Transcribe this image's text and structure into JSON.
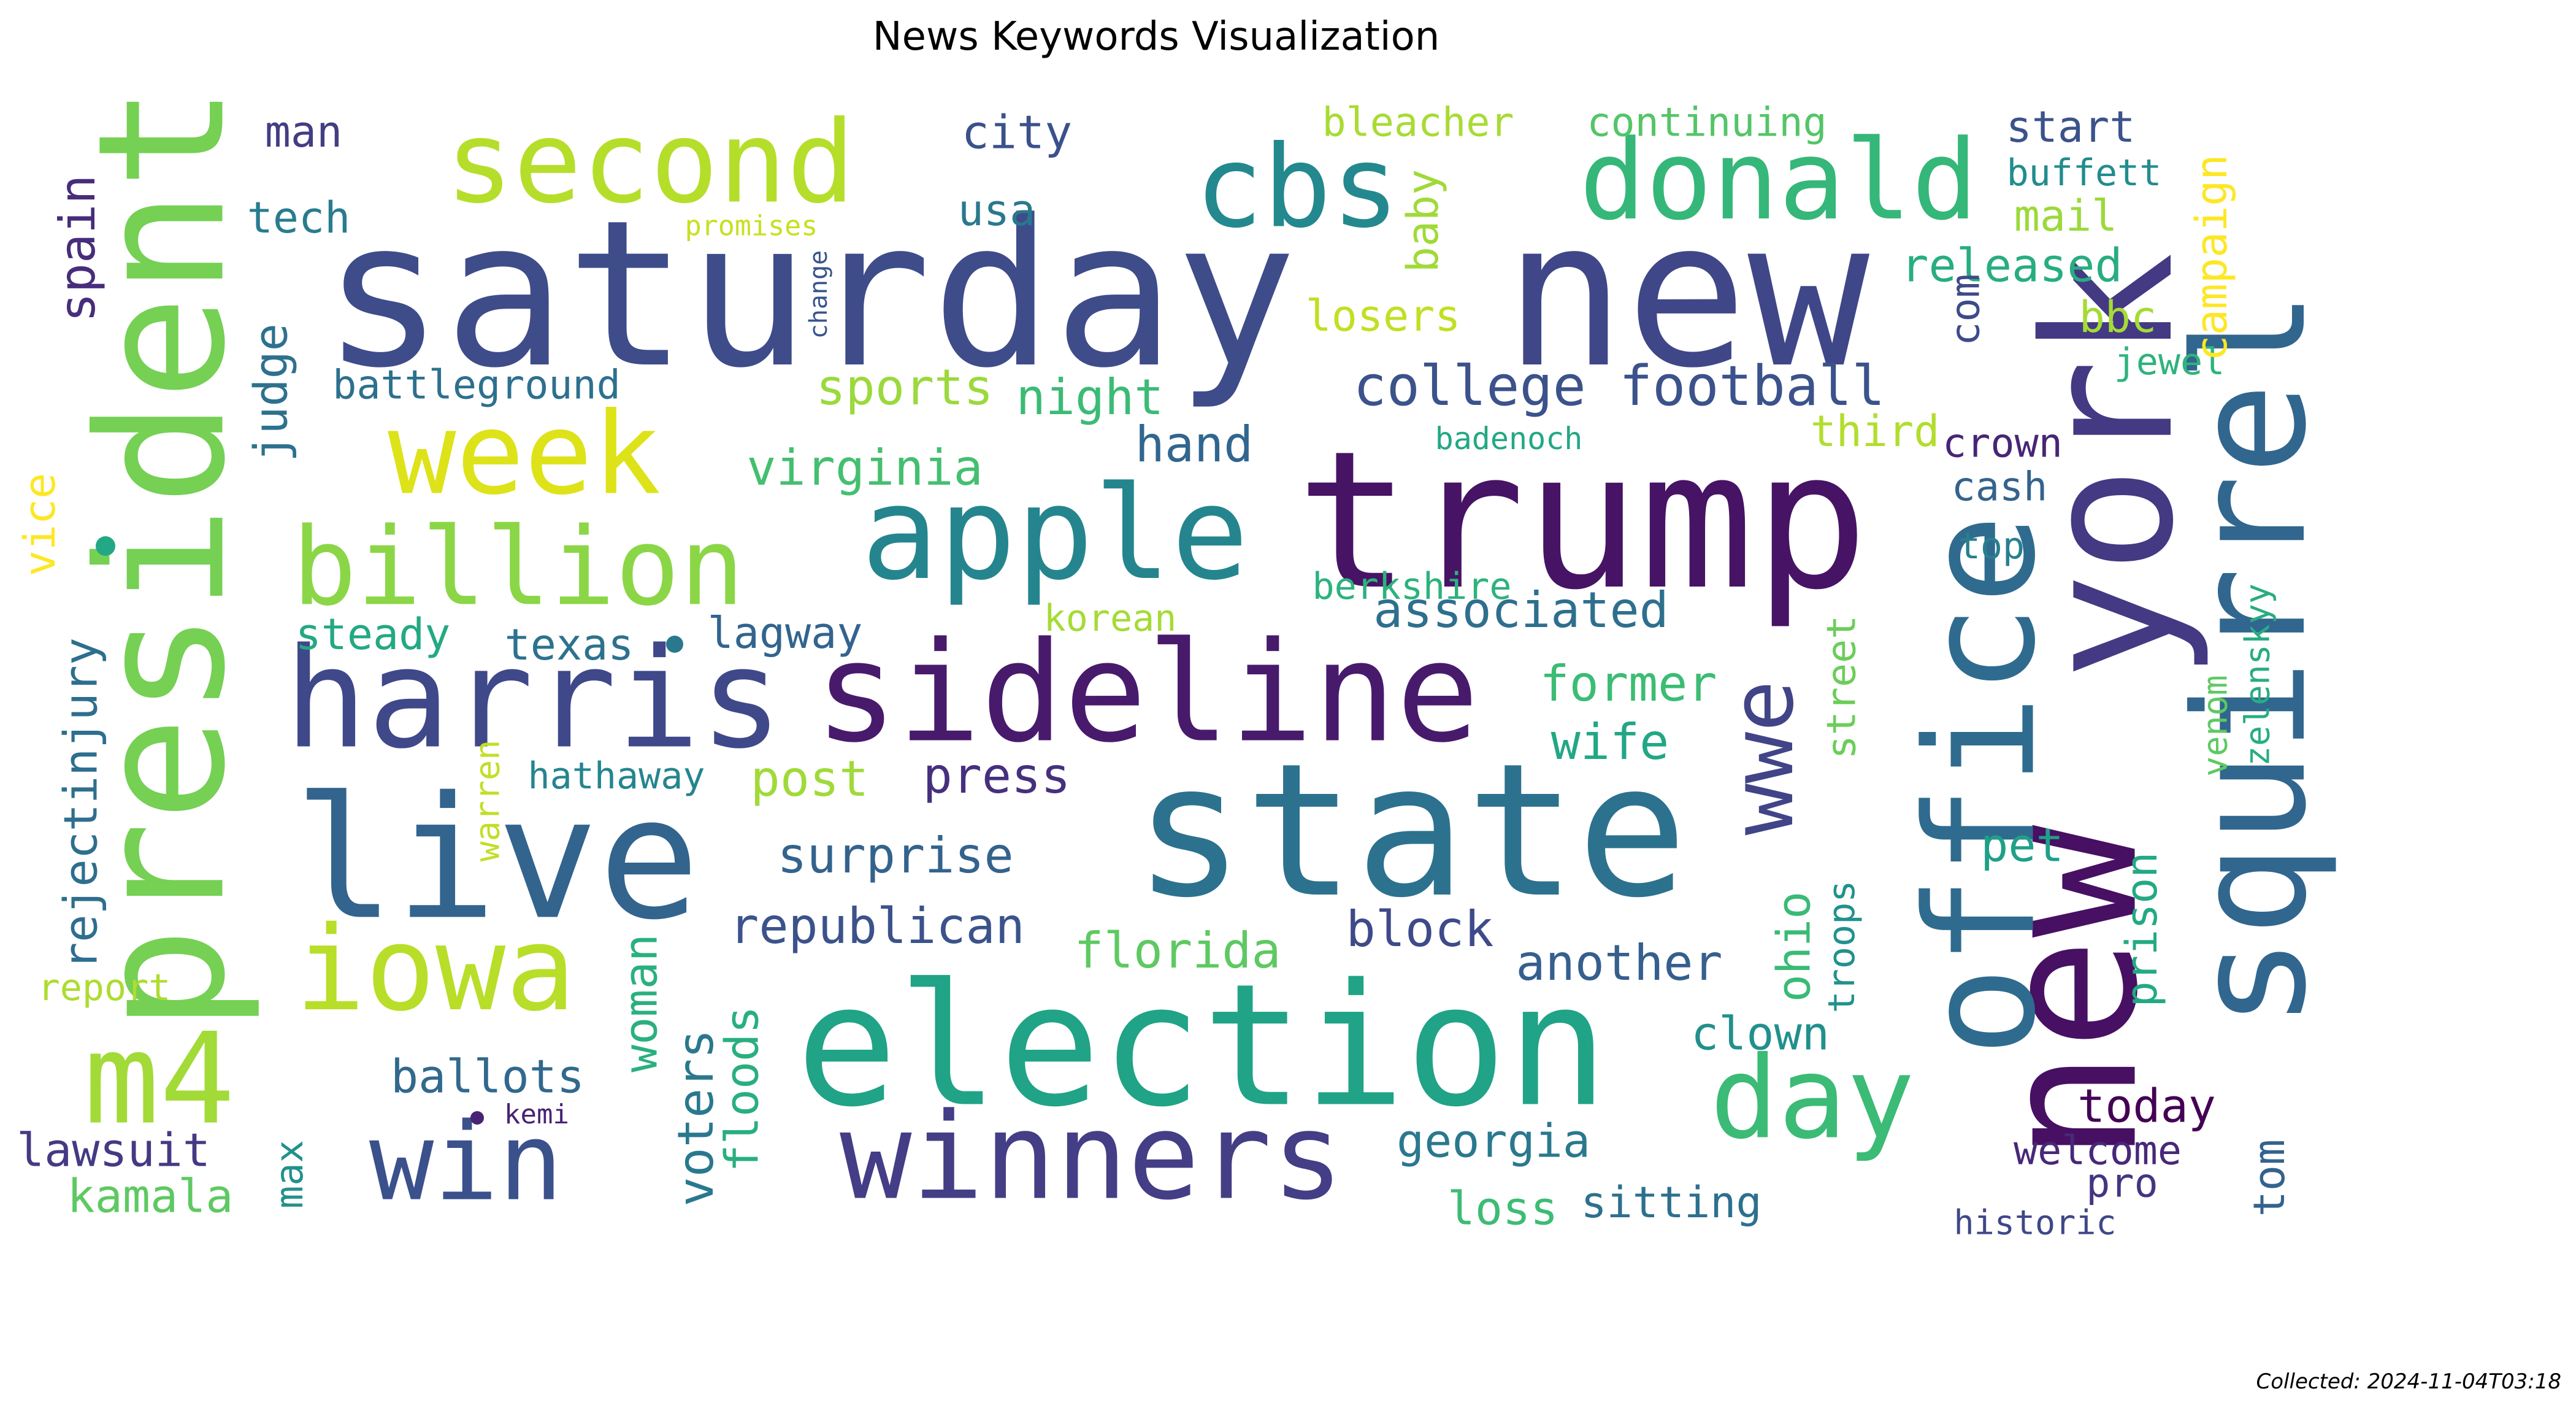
{
  "title": "News Keywords Visualization",
  "footer": "Collected: 2024-11-04T03:18",
  "words": [
    {
      "text": "saturday",
      "color": "#3e4c8a",
      "vertical": false
    },
    {
      "text": "new",
      "color": "#3f4788",
      "vertical": false
    },
    {
      "text": "trump",
      "color": "#471365",
      "vertical": false
    },
    {
      "text": "state",
      "color": "#2c728e",
      "vertical": false
    },
    {
      "text": "election",
      "color": "#20a386",
      "vertical": false
    },
    {
      "text": "live",
      "color": "#32648e",
      "vertical": false
    },
    {
      "text": "harris",
      "color": "#3f4889",
      "vertical": false
    },
    {
      "text": "sideline",
      "color": "#481a6c",
      "vertical": false
    },
    {
      "text": "apple",
      "color": "#25858e",
      "vertical": false
    },
    {
      "text": "president",
      "color": "#75d054",
      "vertical": true
    },
    {
      "text": "new",
      "color": "#471063",
      "vertical": true
    },
    {
      "text": "york",
      "color": "#443983",
      "vertical": true
    },
    {
      "text": "office",
      "color": "#2f6b8e",
      "vertical": true
    },
    {
      "text": "squirrel",
      "color": "#31668e",
      "vertical": true
    },
    {
      "text": "second",
      "color": "#b5de2b",
      "vertical": false
    },
    {
      "text": "cbs",
      "color": "#23898e",
      "vertical": false
    },
    {
      "text": "donald",
      "color": "#35b779",
      "vertical": false
    },
    {
      "text": "week",
      "color": "#dde318",
      "vertical": false
    },
    {
      "text": "billion",
      "color": "#8bd646",
      "vertical": false
    },
    {
      "text": "winners",
      "color": "#433e85",
      "vertical": false
    },
    {
      "text": "day",
      "color": "#3bbb75",
      "vertical": false
    },
    {
      "text": "win",
      "color": "#3b518b",
      "vertical": false
    },
    {
      "text": "m4",
      "color": "#a2da37",
      "vertical": false
    },
    {
      "text": "iowa",
      "color": "#b8de29",
      "vertical": false
    },
    {
      "text": "wwe",
      "color": "#414487",
      "vertical": true
    },
    {
      "text": "college football",
      "color": "#3b528b",
      "vertical": false
    },
    {
      "text": "associated",
      "color": "#2e6f8e",
      "vertical": false
    },
    {
      "text": "former",
      "color": "#3cbc74",
      "vertical": false
    },
    {
      "text": "wife",
      "color": "#22a785",
      "vertical": false
    },
    {
      "text": "surprise",
      "color": "#33638d",
      "vertical": false
    },
    {
      "text": "republican",
      "color": "#3b528b",
      "vertical": false
    },
    {
      "text": "florida",
      "color": "#5ec962",
      "vertical": false
    },
    {
      "text": "block",
      "color": "#3e4a89",
      "vertical": false
    },
    {
      "text": "another",
      "color": "#355f8d",
      "vertical": false
    },
    {
      "text": "georgia",
      "color": "#2a788e",
      "vertical": false
    },
    {
      "text": "loss",
      "color": "#3dbc74",
      "vertical": false
    },
    {
      "text": "sitting",
      "color": "#2d708e",
      "vertical": false
    },
    {
      "text": "clown",
      "color": "#21908d",
      "vertical": false
    },
    {
      "text": "ballots",
      "color": "#31688e",
      "vertical": false
    },
    {
      "text": "lawsuit",
      "color": "#443a83",
      "vertical": false
    },
    {
      "text": "kamala",
      "color": "#5ec962",
      "vertical": false
    },
    {
      "text": "kemi",
      "color": "#482374",
      "vertical": false
    },
    {
      "text": "report",
      "color": "#addc30",
      "vertical": false
    },
    {
      "text": "voters",
      "color": "#2a788e",
      "vertical": true
    },
    {
      "text": "woman",
      "color": "#2ab07f",
      "vertical": true
    },
    {
      "text": "floods",
      "color": "#29af7f",
      "vertical": true
    },
    {
      "text": "max",
      "color": "#21918c",
      "vertical": true
    },
    {
      "text": "hathaway",
      "color": "#25858e",
      "vertical": false
    },
    {
      "text": "post",
      "color": "#a0da39",
      "vertical": false
    },
    {
      "text": "press",
      "color": "#46307e",
      "vertical": false
    },
    {
      "text": "steady",
      "color": "#23a983",
      "vertical": false
    },
    {
      "text": "texas",
      "color": "#2c728e",
      "vertical": false
    },
    {
      "text": "lagway",
      "color": "#32648e",
      "vertical": false
    },
    {
      "text": "korean",
      "color": "#a5db36",
      "vertical": false
    },
    {
      "text": "berkshire",
      "color": "#2db27d",
      "vertical": false
    },
    {
      "text": "virginia",
      "color": "#44bf70",
      "vertical": false
    },
    {
      "text": "hand",
      "color": "#31668e",
      "vertical": false
    },
    {
      "text": "sports",
      "color": "#9bd93c",
      "vertical": false
    },
    {
      "text": "night",
      "color": "#3bbb75",
      "vertical": false
    },
    {
      "text": "battleground",
      "color": "#2d708e",
      "vertical": false
    },
    {
      "text": "judge",
      "color": "#2d718e",
      "vertical": true
    },
    {
      "text": "tech",
      "color": "#287c8e",
      "vertical": false
    },
    {
      "text": "man",
      "color": "#433d84",
      "vertical": false
    },
    {
      "text": "city",
      "color": "#3b518b",
      "vertical": false
    },
    {
      "text": "usa",
      "color": "#2a788e",
      "vertical": false
    },
    {
      "text": "promises",
      "color": "#c8e020",
      "vertical": false
    },
    {
      "text": "change",
      "color": "#39558c",
      "vertical": true
    },
    {
      "text": "spain",
      "color": "#472d7b",
      "vertical": true
    },
    {
      "text": "vice",
      "color": "#fde725",
      "vertical": true
    },
    {
      "text": "rejectinjury",
      "color": "#2e6e8e",
      "vertical": true
    },
    {
      "text": "warren",
      "color": "#c0df25",
      "vertical": true
    },
    {
      "text": "bleacher",
      "color": "#a8db34",
      "vertical": false
    },
    {
      "text": "continuing",
      "color": "#54c568",
      "vertical": false
    },
    {
      "text": "baby",
      "color": "#a0da39",
      "vertical": true
    },
    {
      "text": "losers",
      "color": "#c2df23",
      "vertical": false
    },
    {
      "text": "released",
      "color": "#27ad81",
      "vertical": false
    },
    {
      "text": "third",
      "color": "#b2dd2d",
      "vertical": false
    },
    {
      "text": "badenoch",
      "color": "#22a884",
      "vertical": false
    },
    {
      "text": "crown",
      "color": "#482576",
      "vertical": false
    },
    {
      "text": "cash",
      "color": "#33638d",
      "vertical": false
    },
    {
      "text": "top",
      "color": "#277f8e",
      "vertical": false
    },
    {
      "text": "com",
      "color": "#3e4a89",
      "vertical": true
    },
    {
      "text": "street",
      "color": "#6ccd5a",
      "vertical": true
    },
    {
      "text": "troops",
      "color": "#21918c",
      "vertical": true
    },
    {
      "text": "ohio",
      "color": "#3aba76",
      "vertical": true
    },
    {
      "text": "start",
      "color": "#3b528b",
      "vertical": false
    },
    {
      "text": "buffett",
      "color": "#228c8d",
      "vertical": false
    },
    {
      "text": "mail",
      "color": "#9bd93c",
      "vertical": false
    },
    {
      "text": "bbc",
      "color": "#a5db36",
      "vertical": false
    },
    {
      "text": "jewel",
      "color": "#2eb37c",
      "vertical": false
    },
    {
      "text": "campaign",
      "color": "#fde725",
      "vertical": true
    },
    {
      "text": "pet",
      "color": "#1fa088",
      "vertical": false
    },
    {
      "text": "prison",
      "color": "#23a983",
      "vertical": true
    },
    {
      "text": "venom",
      "color": "#5ec962",
      "vertical": true
    },
    {
      "text": "zelenskyy",
      "color": "#27ad81",
      "vertical": true
    },
    {
      "text": "today",
      "color": "#440154",
      "vertical": false
    },
    {
      "text": "welcome",
      "color": "#482878",
      "vertical": false
    },
    {
      "text": "pro",
      "color": "#453581",
      "vertical": false
    },
    {
      "text": "tom",
      "color": "#33638d",
      "vertical": true
    },
    {
      "text": "historic",
      "color": "#3f4788",
      "vertical": false
    }
  ],
  "dots": [
    {
      "name": "dot-1",
      "color": "#22a884"
    },
    {
      "name": "dot-2",
      "color": "#2a788e"
    },
    {
      "name": "dot-3",
      "color": "#482374"
    }
  ]
}
